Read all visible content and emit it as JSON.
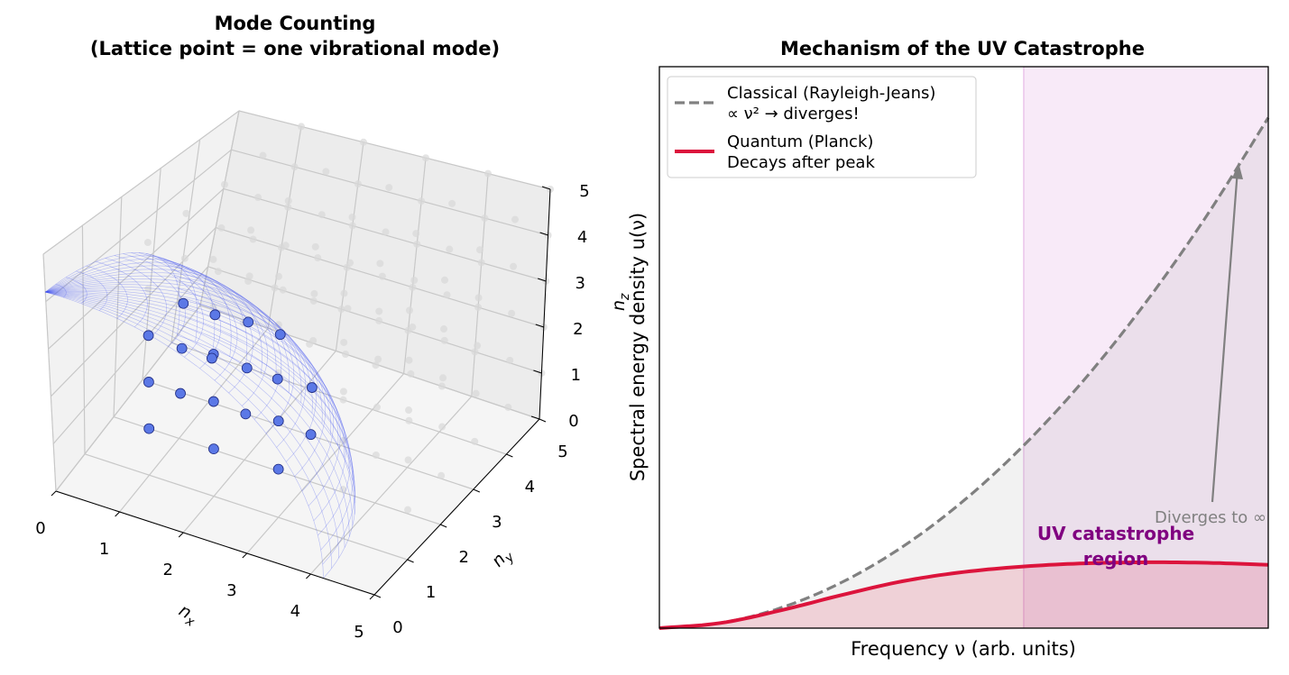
{
  "chart_data": [
    {
      "type": "scatter",
      "subtype": "3d-scatter-with-surface",
      "title": "Mode Counting\n(Lattice point = one vibrational mode)",
      "xlabel": "n_x",
      "ylabel": "n_y",
      "zlabel": "n_z",
      "xlim": [
        0,
        5
      ],
      "ylim": [
        0,
        5
      ],
      "zlim": [
        0,
        5
      ],
      "x_ticks": [
        "0",
        "1",
        "2",
        "3",
        "4",
        "5"
      ],
      "y_ticks": [
        "0",
        "1",
        "2",
        "3",
        "4",
        "5"
      ],
      "z_ticks": [
        "0",
        "1",
        "2",
        "3",
        "4",
        "5"
      ],
      "surface": {
        "kind": "octant-of-sphere",
        "radius": 4.2,
        "color": "#3b4cf0"
      },
      "inside_color": "#5b78e6",
      "outside_color": "#d9d9d9",
      "grid": true
    },
    {
      "type": "line",
      "title": "Mechanism of the UV Catastrophe",
      "xlabel": "Frequency ν (arb. units)",
      "ylabel": "Spectral energy density u(ν)",
      "xlim": [
        0,
        10
      ],
      "ylim": [
        0,
        1.1
      ],
      "x_ticks": [],
      "y_ticks": [],
      "legend_position": "top-left",
      "series": [
        {
          "name": "Classical (Rayleigh-Jeans)\n∝ ν² → diverges!",
          "style": "dashed",
          "color": "#808080",
          "x": [
            0,
            1,
            2,
            3,
            4,
            5,
            6,
            7,
            8,
            9,
            10
          ],
          "y": [
            0,
            0.01,
            0.04,
            0.09,
            0.16,
            0.25,
            0.36,
            0.49,
            0.64,
            0.81,
            1.0
          ]
        },
        {
          "name": "Quantum (Planck)\nDecays after peak",
          "style": "solid",
          "color": "#dc143c",
          "x": [
            0,
            1,
            2,
            3,
            4,
            5,
            6,
            7,
            8,
            9,
            10
          ],
          "y": [
            0,
            0.01,
            0.035,
            0.065,
            0.092,
            0.11,
            0.121,
            0.127,
            0.129,
            0.128,
            0.124
          ]
        }
      ],
      "shaded_region": {
        "x_start": 6,
        "x_end": 10,
        "color": "#dda0dd"
      },
      "annotations": [
        {
          "text": "UV catastrophe\nregion",
          "color": "#800080"
        },
        {
          "text": "Diverges to ∞",
          "color": "#808080"
        }
      ]
    }
  ]
}
